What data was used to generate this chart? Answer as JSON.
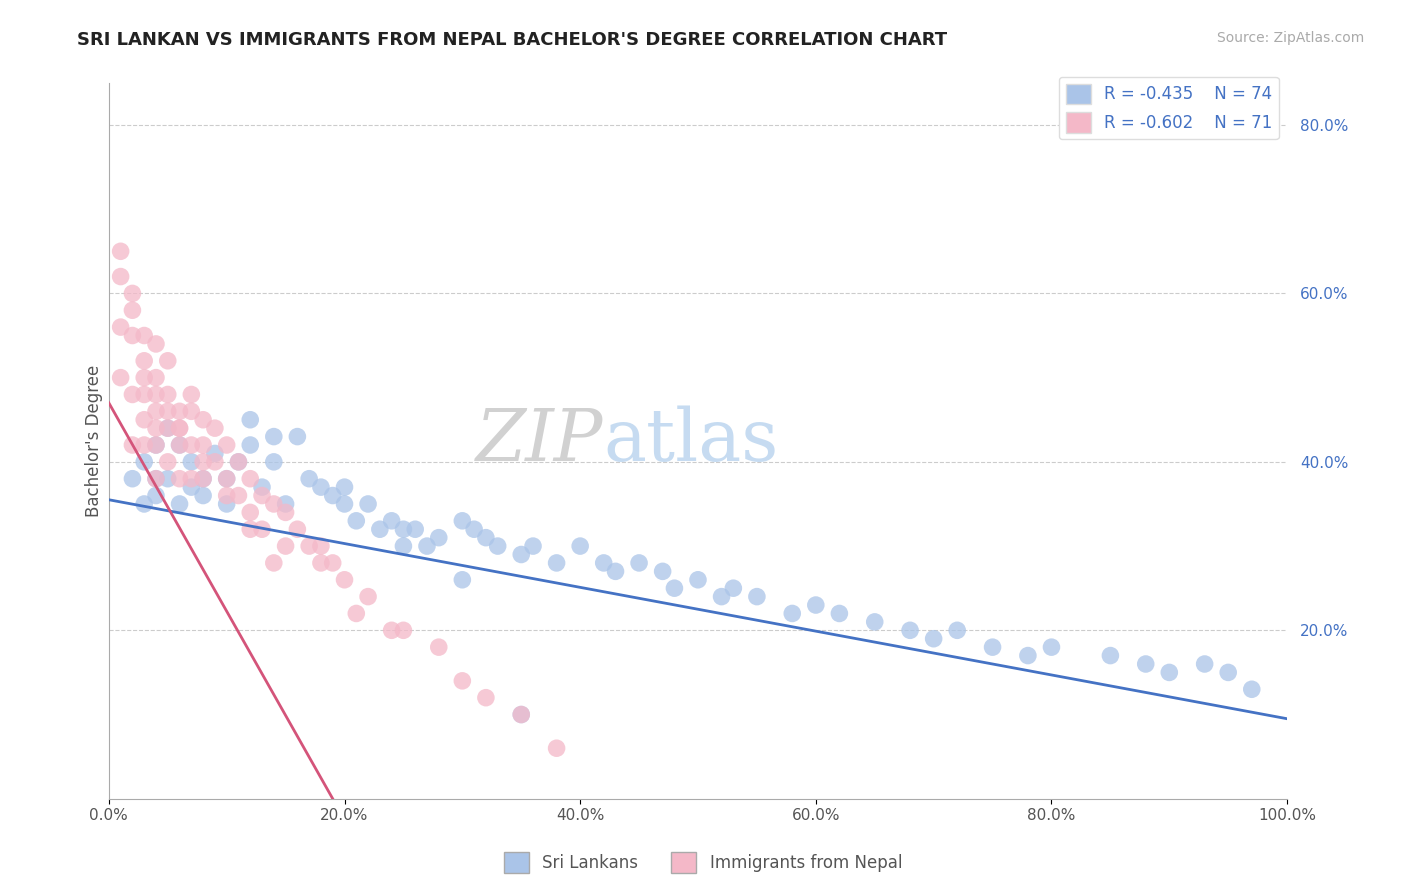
{
  "title": "SRI LANKAN VS IMMIGRANTS FROM NEPAL BACHELOR'S DEGREE CORRELATION CHART",
  "source": "Source: ZipAtlas.com",
  "ylabel": "Bachelor's Degree",
  "xlim": [
    0.0,
    1.0
  ],
  "ylim": [
    0.0,
    0.85
  ],
  "x_ticks": [
    0.0,
    0.2,
    0.4,
    0.6,
    0.8,
    1.0
  ],
  "x_tick_labels": [
    "0.0%",
    "20.0%",
    "40.0%",
    "60.0%",
    "80.0%",
    "100.0%"
  ],
  "y_tick_vals": [
    0.0,
    0.2,
    0.4,
    0.6,
    0.8
  ],
  "y_tick_labels": [
    "",
    "20.0%",
    "40.0%",
    "60.0%",
    "80.0%"
  ],
  "sri_lankan_R": -0.435,
  "sri_lankan_N": 74,
  "nepal_R": -0.602,
  "nepal_N": 71,
  "legend_sri_color": "#aac4e8",
  "legend_nepal_color": "#f4b8c8",
  "sri_line_color": "#4472c4",
  "nepal_line_color": "#d4547a",
  "watermark_zip": "ZIP",
  "watermark_atlas": "atlas",
  "sri_scatter_color": "#aac4e8",
  "nepal_scatter_color": "#f4b8c8",
  "sri_line_start_y": 0.355,
  "sri_line_end_y": 0.095,
  "nepal_line_start_x": 0.0,
  "nepal_line_start_y": 0.47,
  "nepal_line_end_x": 0.19,
  "nepal_line_end_y": 0.0,
  "sri_lankans_x": [
    0.02,
    0.03,
    0.03,
    0.04,
    0.04,
    0.04,
    0.05,
    0.05,
    0.06,
    0.06,
    0.07,
    0.07,
    0.08,
    0.08,
    0.09,
    0.1,
    0.1,
    0.11,
    0.12,
    0.13,
    0.14,
    0.15,
    0.16,
    0.17,
    0.18,
    0.19,
    0.2,
    0.21,
    0.22,
    0.23,
    0.24,
    0.25,
    0.26,
    0.27,
    0.28,
    0.3,
    0.31,
    0.32,
    0.33,
    0.35,
    0.36,
    0.38,
    0.4,
    0.42,
    0.43,
    0.45,
    0.47,
    0.48,
    0.5,
    0.52,
    0.53,
    0.55,
    0.58,
    0.6,
    0.62,
    0.65,
    0.68,
    0.7,
    0.72,
    0.75,
    0.78,
    0.8,
    0.85,
    0.88,
    0.9,
    0.93,
    0.95,
    0.97,
    0.12,
    0.14,
    0.2,
    0.25,
    0.3,
    0.35
  ],
  "sri_lankans_y": [
    0.38,
    0.4,
    0.35,
    0.42,
    0.38,
    0.36,
    0.44,
    0.38,
    0.42,
    0.35,
    0.4,
    0.37,
    0.38,
    0.36,
    0.41,
    0.38,
    0.35,
    0.4,
    0.42,
    0.37,
    0.4,
    0.35,
    0.43,
    0.38,
    0.37,
    0.36,
    0.35,
    0.33,
    0.35,
    0.32,
    0.33,
    0.3,
    0.32,
    0.3,
    0.31,
    0.33,
    0.32,
    0.31,
    0.3,
    0.29,
    0.3,
    0.28,
    0.3,
    0.28,
    0.27,
    0.28,
    0.27,
    0.25,
    0.26,
    0.24,
    0.25,
    0.24,
    0.22,
    0.23,
    0.22,
    0.21,
    0.2,
    0.19,
    0.2,
    0.18,
    0.17,
    0.18,
    0.17,
    0.16,
    0.15,
    0.16,
    0.15,
    0.13,
    0.45,
    0.43,
    0.37,
    0.32,
    0.26,
    0.1
  ],
  "nepal_x": [
    0.01,
    0.01,
    0.02,
    0.02,
    0.02,
    0.03,
    0.03,
    0.03,
    0.03,
    0.04,
    0.04,
    0.04,
    0.04,
    0.04,
    0.05,
    0.05,
    0.05,
    0.05,
    0.06,
    0.06,
    0.06,
    0.06,
    0.07,
    0.07,
    0.07,
    0.08,
    0.08,
    0.08,
    0.09,
    0.09,
    0.1,
    0.1,
    0.11,
    0.11,
    0.12,
    0.12,
    0.13,
    0.13,
    0.14,
    0.15,
    0.15,
    0.16,
    0.17,
    0.18,
    0.18,
    0.19,
    0.2,
    0.21,
    0.22,
    0.24,
    0.25,
    0.28,
    0.3,
    0.32,
    0.35,
    0.38,
    0.1,
    0.12,
    0.14,
    0.07,
    0.08,
    0.05,
    0.06,
    0.03,
    0.04,
    0.02,
    0.01,
    0.01,
    0.02,
    0.03,
    0.04
  ],
  "nepal_y": [
    0.65,
    0.5,
    0.55,
    0.48,
    0.42,
    0.5,
    0.48,
    0.45,
    0.42,
    0.5,
    0.48,
    0.44,
    0.42,
    0.38,
    0.48,
    0.46,
    0.44,
    0.4,
    0.46,
    0.44,
    0.42,
    0.38,
    0.46,
    0.42,
    0.38,
    0.45,
    0.42,
    0.38,
    0.44,
    0.4,
    0.42,
    0.38,
    0.4,
    0.36,
    0.38,
    0.34,
    0.36,
    0.32,
    0.35,
    0.34,
    0.3,
    0.32,
    0.3,
    0.28,
    0.3,
    0.28,
    0.26,
    0.22,
    0.24,
    0.2,
    0.2,
    0.18,
    0.14,
    0.12,
    0.1,
    0.06,
    0.36,
    0.32,
    0.28,
    0.48,
    0.4,
    0.52,
    0.44,
    0.55,
    0.46,
    0.58,
    0.62,
    0.56,
    0.6,
    0.52,
    0.54
  ]
}
